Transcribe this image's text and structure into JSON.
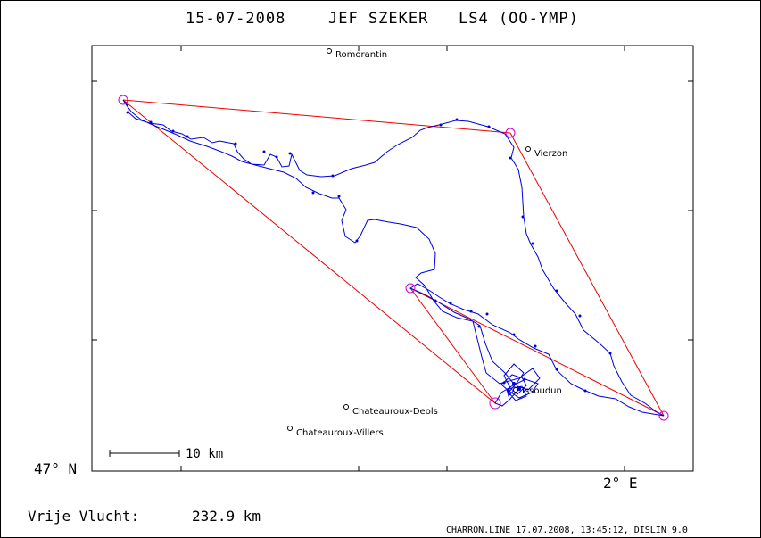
{
  "title": {
    "date": "15-07-2008",
    "pilot": "JEF SZEKER",
    "glider": "LS4 (OO-YMP)"
  },
  "axes": {
    "lat_label": "47° N",
    "lon_label": "2° E"
  },
  "scale_bar": {
    "label": "10 km"
  },
  "places": [
    {
      "name": "Romorantin"
    },
    {
      "name": "Vierzon"
    },
    {
      "name": "Issoudun"
    },
    {
      "name": "Chateauroux-Deols"
    },
    {
      "name": "Chateauroux-Villers"
    }
  ],
  "footer": {
    "distance_label": "Vrije Vlucht:",
    "distance_value": "232.9 km",
    "credit": "CHARRON.LINE 17.07.2008, 13:45:12, DISLIN 9.0"
  },
  "colors": {
    "track": "#0000dd",
    "task_line": "#ee0000",
    "turnpoint": "#cc00cc"
  }
}
